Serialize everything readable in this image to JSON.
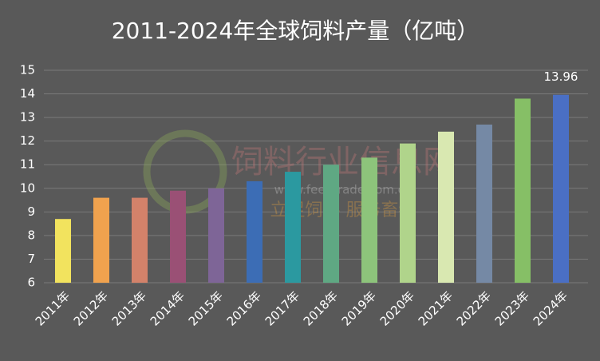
{
  "chart_data": {
    "type": "bar",
    "title": "2011-2024年全球饲料产量（亿吨）",
    "categories": [
      "2011年",
      "2012年",
      "2013年",
      "2014年",
      "2015年",
      "2016年",
      "2017年",
      "2018年",
      "2019年",
      "2020年",
      "2021年",
      "2022年",
      "2023年",
      "2024年"
    ],
    "values": [
      8.7,
      9.6,
      9.6,
      9.9,
      10.0,
      10.3,
      10.7,
      11.0,
      11.3,
      11.9,
      12.4,
      12.7,
      13.8,
      13.96
    ],
    "value_labels": [
      null,
      null,
      null,
      null,
      null,
      null,
      null,
      null,
      null,
      null,
      null,
      null,
      null,
      "13.96"
    ],
    "colors": [
      "#f2e35e",
      "#f0a24e",
      "#d3826a",
      "#9a5075",
      "#7e6597",
      "#3c6db5",
      "#2b99a0",
      "#5fa883",
      "#8dc47b",
      "#b0d48b",
      "#d9e8b1",
      "#7589a5",
      "#86bf66",
      "#4a6fc4"
    ],
    "ylim": [
      6,
      15
    ],
    "yticks": [
      6,
      7,
      8,
      9,
      10,
      11,
      12,
      13,
      14,
      15
    ],
    "grid": true,
    "watermark": {
      "name": "饲料行业信息网",
      "url": "www.feedtrade.com.cn",
      "slogan": "立足饲料   服务畜牧"
    }
  }
}
